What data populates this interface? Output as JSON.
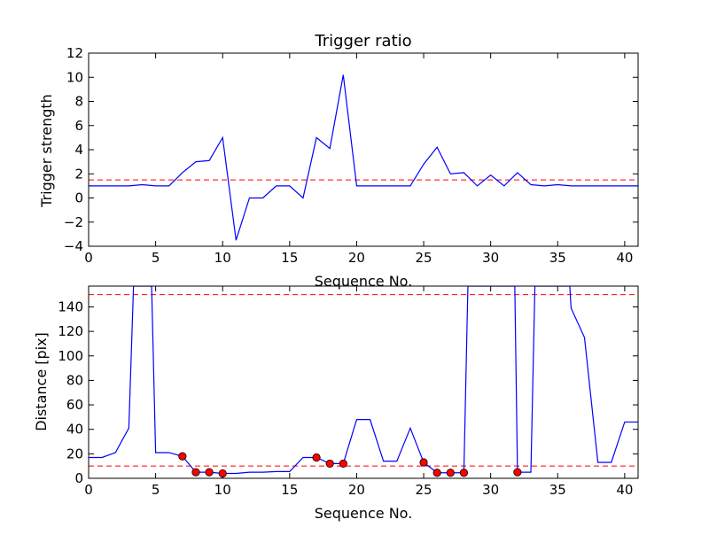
{
  "chart_data": [
    {
      "type": "line",
      "title": "Trigger ratio",
      "xlabel": "Sequence No.",
      "ylabel": "Trigger strength",
      "xlim": [
        0,
        41
      ],
      "ylim": [
        -4,
        12
      ],
      "xticks": [
        "0",
        "5",
        "10",
        "15",
        "20",
        "25",
        "30",
        "35",
        "40"
      ],
      "yticks": [
        "−4",
        "−2",
        "0",
        "2",
        "4",
        "6",
        "8",
        "10",
        "12"
      ],
      "series": [
        {
          "color": "#0000ff",
          "x": [
            0,
            1,
            2,
            3,
            4,
            5,
            6,
            7,
            8,
            9,
            10,
            11,
            12,
            13,
            14,
            15,
            16,
            17,
            18,
            19,
            20,
            21,
            22,
            23,
            24,
            25,
            26,
            27,
            28,
            29,
            30,
            31,
            32,
            33,
            34,
            35,
            36,
            37,
            38,
            39,
            40,
            41
          ],
          "y": [
            1,
            1,
            1,
            1,
            1.1,
            1,
            1,
            2.1,
            3,
            3.1,
            5,
            -3.5,
            0,
            0,
            1,
            1,
            0,
            5,
            4.1,
            10.2,
            1,
            1,
            1,
            1,
            1,
            2.8,
            4.2,
            2,
            2.1,
            1,
            1.9,
            1,
            2.1,
            1.1,
            1,
            1.1,
            1,
            1,
            1,
            1,
            1,
            1
          ]
        }
      ],
      "threshold": {
        "y": 1.5,
        "color": "#ff0000",
        "style": "dashed"
      }
    },
    {
      "type": "line",
      "title": "",
      "xlabel": "Sequence No.",
      "ylabel": "Distance [pix]",
      "xlim": [
        0,
        41
      ],
      "ylim": [
        0,
        157
      ],
      "xticks": [
        "0",
        "5",
        "10",
        "15",
        "20",
        "25",
        "30",
        "35",
        "40"
      ],
      "yticks": [
        "0",
        "20",
        "40",
        "60",
        "80",
        "100",
        "120",
        "140"
      ],
      "series": [
        {
          "color": "#0000ff",
          "x": [
            0,
            1,
            2,
            3,
            3.35,
            4.7,
            5,
            6,
            7,
            8,
            9,
            10,
            11,
            12,
            13,
            14,
            15,
            16,
            17,
            18,
            19,
            20,
            21,
            22,
            23,
            24,
            25,
            26,
            27,
            28,
            28.3,
            31.8,
            32,
            33,
            33.3,
            35.9,
            36,
            37,
            38,
            39,
            40,
            41
          ],
          "y": [
            17,
            17,
            21,
            41,
            157,
            157,
            21,
            21,
            18,
            5,
            5,
            4,
            4,
            5,
            5,
            5.5,
            5.5,
            17,
            17,
            12,
            12,
            48,
            48,
            14,
            14,
            41,
            13,
            4.5,
            4.5,
            4.5,
            157,
            157,
            5,
            5,
            157,
            157,
            139,
            115,
            13,
            13,
            46,
            46
          ]
        }
      ],
      "markers": {
        "color": "#ff0000",
        "x": [
          7,
          8,
          9,
          10,
          17,
          18,
          19,
          25,
          26,
          27,
          28,
          32
        ],
        "y": [
          18,
          5,
          5,
          4,
          17,
          12,
          12,
          13,
          4.5,
          4.5,
          4.5,
          5
        ]
      },
      "thresholds": [
        {
          "y": 150,
          "color": "#ff0000",
          "style": "dashed"
        },
        {
          "y": 10,
          "color": "#ff0000",
          "style": "dashed"
        }
      ]
    }
  ]
}
